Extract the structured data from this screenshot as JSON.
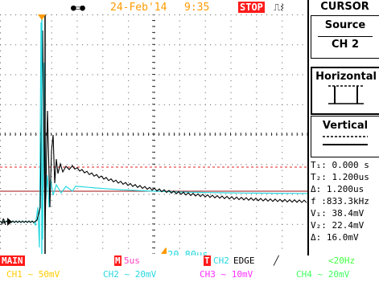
{
  "header": {
    "usb_icon": "usb-connection-icon",
    "date": "24-Feb'14",
    "time": "9:35",
    "run_state": "STOP",
    "trigger_mode_icon": "single-pulse-icon"
  },
  "scope": {
    "trigger_marker_label": "A",
    "cursor_time_readout": "20.80us",
    "colors": {
      "ch1": "#000000",
      "ch2": "#28d8e0",
      "cursor_h": "#e02020",
      "cursor_h2": "#a01010",
      "grid": "#000000",
      "trigger_arrow": "#ff9a00"
    }
  },
  "panel": {
    "title": "CURSOR",
    "source_label": "Source",
    "source_value": "CH 2",
    "horizontal_label": "Horizontal",
    "horizontal_icon": "vertical-cursor-pair-icon",
    "vertical_label": "Vertical",
    "vertical_icon": "horizontal-cursor-pair-icon",
    "readouts": [
      "T₁: 0.000 s",
      "T₂: 1.200us",
      "Δ: 1.200us",
      "f :833.3kHz",
      "V₁: 38.4mV",
      "V₂: 22.4mV",
      "Δ: 16.0mV"
    ]
  },
  "footer": {
    "mode": "MAIN",
    "timebase_badge": "M",
    "timebase": "5us",
    "trigger_badge": "T",
    "trigger_source": "CH2",
    "trigger_type": "EDGE",
    "trigger_slope": "╱",
    "bandwidth": "<20Hz",
    "channels": [
      {
        "label": "CH1",
        "coupling": "~",
        "scale": "50mV"
      },
      {
        "label": "CH2",
        "coupling": "~",
        "scale": "20mV"
      },
      {
        "label": "CH3",
        "coupling": "~",
        "scale": "10mV"
      },
      {
        "label": "CH4",
        "coupling": "~",
        "scale": "20mV"
      }
    ]
  }
}
